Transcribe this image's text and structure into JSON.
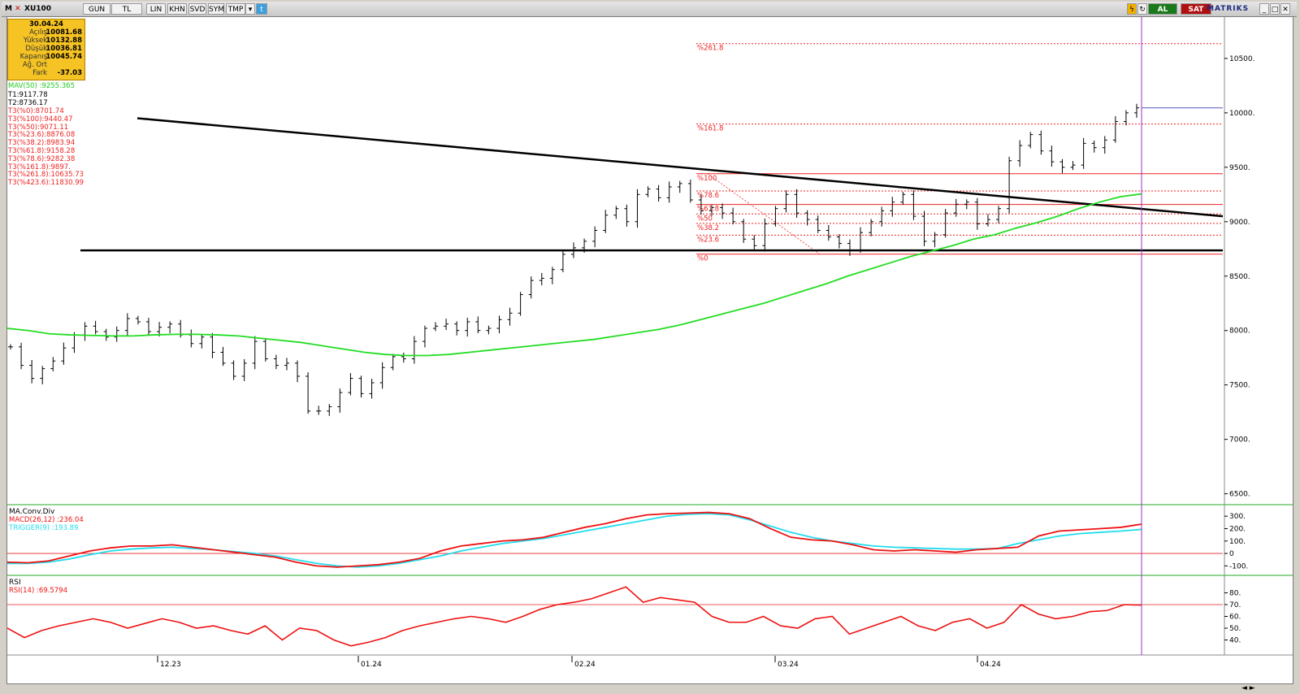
{
  "toolbar": {
    "symbol": "XU100",
    "buttons": [
      "GUN",
      "TL",
      "LIN",
      "KHN",
      "SVD",
      "SYM",
      "TMP"
    ],
    "buy_label": "AL",
    "sell_label": "SAT",
    "brand": "MATRIKS"
  },
  "info_box": {
    "date": "30.04.24",
    "rows": [
      {
        "label": "Açılış",
        "value": "10081.68"
      },
      {
        "label": "Yüksek",
        "value": "10132.88"
      },
      {
        "label": "Düşük",
        "value": "10036.81"
      },
      {
        "label": "Kapanış",
        "value": "10045.74"
      },
      {
        "label": "Ağ. Ort",
        "value": ""
      },
      {
        "label": "Fark",
        "value": "-37.03"
      }
    ]
  },
  "indicators": {
    "mav": "MAV(50)       :9255.365",
    "trend_lines": [
      "T1:9117.78",
      "T2:8736.17"
    ],
    "fib_values": [
      "T3(%0):8701.74",
      "T3(%100):9440.47",
      "T3(%50):9071.11",
      "T3(%23.6):8876.08",
      "T3(%38.2):8983.94",
      "T3(%61.8):9158.28",
      "T3(%78.6):9282.38",
      "T3(%161.8):9897.",
      "T3(%261.8):10635.73",
      "T3(%423.6):11830.99"
    ]
  },
  "macd_panel": {
    "title": "MA.Conv.Div",
    "macd_label": "MACD(26,12)     :236.04",
    "trigger_label": "TRIGGER(9)      :193.89"
  },
  "rsi_panel": {
    "title": "RSI",
    "rsi_label": "RSI(14)      :69.5794"
  },
  "colors": {
    "price_bars": "#000000",
    "mav": "#22dd22",
    "fib": "#ee2222",
    "macd": "#ee1111",
    "trigger": "#22ddee",
    "rsi": "#ee1111",
    "cursor": "#9a30c8",
    "trendline": "#000000"
  },
  "chart_data": {
    "type": "bar",
    "title": "XU100",
    "x_tick_labels": [
      "12.23",
      "01.24",
      "02.24",
      "03.24",
      "04.24"
    ],
    "price_axis": {
      "ticks": [
        6500,
        7000,
        7500,
        8000,
        8500,
        9000,
        9500,
        10000,
        10500
      ],
      "tick_labels": [
        "6500.",
        "7000.",
        "7500.",
        "8000.",
        "8500.",
        "9000.",
        "9500.",
        "10000.",
        "10500."
      ],
      "ylim": [
        6400,
        10880
      ]
    },
    "fib_levels": [
      {
        "label": "%0",
        "value": 8701.74
      },
      {
        "label": "%23.6",
        "value": 8876.08
      },
      {
        "label": "%38.2",
        "value": 8983.94
      },
      {
        "label": "%50",
        "value": 9071.11
      },
      {
        "label": "%61.8",
        "value": 9158.28
      },
      {
        "label": "%78.6",
        "value": 9282.38
      },
      {
        "label": "%100",
        "value": 9440.47
      },
      {
        "label": "%161.8",
        "value": 9897.0
      },
      {
        "label": "%261.8",
        "value": 10635.73
      }
    ],
    "horizontal_support": 8736.17,
    "current_close": 10045.74,
    "closes": [
      7850,
      7680,
      7560,
      7650,
      7720,
      7840,
      7960,
      8040,
      7990,
      7940,
      8000,
      8110,
      8080,
      7990,
      8030,
      8060,
      7960,
      7880,
      7940,
      7800,
      7700,
      7580,
      7700,
      7900,
      7740,
      7680,
      7700,
      7580,
      7260,
      7260,
      7300,
      7430,
      7560,
      7420,
      7520,
      7660,
      7760,
      7740,
      7900,
      8020,
      8040,
      8060,
      8000,
      8080,
      8000,
      8020,
      8100,
      8160,
      8330,
      8460,
      8480,
      8560,
      8700,
      8760,
      8820,
      8920,
      9060,
      9120,
      9000,
      9250,
      9300,
      9220,
      9320,
      9350,
      9200,
      9100,
      9130,
      9080,
      9000,
      8840,
      8780,
      8980,
      9120,
      9250,
      9080,
      9020,
      8920,
      8860,
      8800,
      8740,
      8900,
      9000,
      9100,
      9180,
      9250,
      9050,
      8820,
      8880,
      9080,
      9160,
      9180,
      8980,
      9020,
      9120,
      9560,
      9700,
      9800,
      9650,
      9550,
      9500,
      9520,
      9720,
      9680,
      9750,
      9920,
      10000,
      10046
    ],
    "mav50": [
      8020,
      8000,
      7970,
      7960,
      7955,
      7950,
      7950,
      7960,
      7965,
      7965,
      7960,
      7950,
      7930,
      7910,
      7890,
      7860,
      7830,
      7800,
      7780,
      7770,
      7770,
      7780,
      7800,
      7820,
      7840,
      7860,
      7880,
      7900,
      7920,
      7950,
      7980,
      8010,
      8050,
      8100,
      8150,
      8200,
      8250,
      8310,
      8370,
      8430,
      8500,
      8560,
      8620,
      8680,
      8730,
      8780,
      8840,
      8880,
      8940,
      8990,
      9050,
      9120,
      9180,
      9230,
      9255
    ],
    "macd": [
      -70,
      -75,
      -60,
      -20,
      20,
      45,
      60,
      60,
      70,
      50,
      30,
      10,
      -10,
      -30,
      -70,
      -100,
      -110,
      -100,
      -90,
      -70,
      -40,
      20,
      60,
      80,
      100,
      110,
      130,
      170,
      210,
      240,
      280,
      310,
      320,
      325,
      330,
      320,
      280,
      200,
      130,
      110,
      100,
      70,
      30,
      20,
      30,
      20,
      10,
      30,
      40,
      50,
      140,
      180,
      190,
      200,
      210,
      236
    ],
    "trigger": [
      -80,
      -80,
      -70,
      -45,
      -10,
      20,
      35,
      45,
      50,
      40,
      30,
      15,
      0,
      -20,
      -50,
      -80,
      -100,
      -110,
      -100,
      -80,
      -50,
      -20,
      20,
      50,
      80,
      100,
      120,
      150,
      180,
      210,
      240,
      270,
      300,
      315,
      320,
      310,
      270,
      220,
      170,
      130,
      100,
      80,
      60,
      50,
      45,
      40,
      35,
      35,
      40,
      80,
      110,
      140,
      160,
      170,
      180,
      194
    ],
    "macd_ticks": [
      300,
      200,
      100,
      0,
      -100
    ],
    "rsi": [
      50,
      42,
      48,
      52,
      55,
      58,
      55,
      50,
      54,
      58,
      55,
      50,
      52,
      48,
      45,
      52,
      40,
      50,
      48,
      40,
      35,
      38,
      42,
      48,
      52,
      55,
      58,
      60,
      58,
      55,
      60,
      66,
      70,
      72,
      75,
      80,
      85,
      72,
      76,
      74,
      72,
      60,
      55,
      55,
      60,
      52,
      50,
      58,
      60,
      45,
      50,
      55,
      60,
      52,
      48,
      55,
      58,
      50,
      55,
      70,
      62,
      58,
      60,
      64,
      65,
      70,
      69.58
    ],
    "rsi_ticks": [
      80,
      70,
      60,
      50,
      40
    ],
    "rsi_ref": 70
  }
}
